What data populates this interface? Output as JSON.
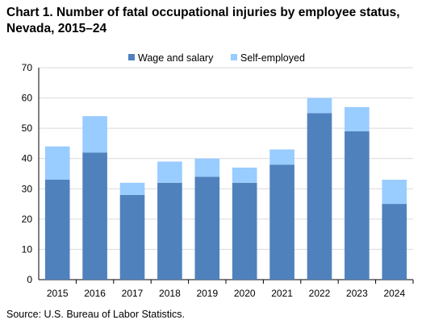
{
  "chart_data": {
    "type": "bar",
    "stacked": true,
    "title": "Chart 1. Number of fatal occupational injuries by employee status, Nevada, 2015–24",
    "xlabel": "",
    "ylabel": "",
    "categories": [
      "2015",
      "2016",
      "2017",
      "2018",
      "2019",
      "2020",
      "2021",
      "2022",
      "2023",
      "2024"
    ],
    "series": [
      {
        "name": "Wage and salary",
        "color": "#4f81bd",
        "values": [
          33,
          42,
          28,
          32,
          34,
          32,
          38,
          55,
          49,
          25
        ]
      },
      {
        "name": "Self-employed",
        "color": "#99ccff",
        "values": [
          11,
          12,
          4,
          7,
          6,
          5,
          5,
          5,
          8,
          8
        ]
      }
    ],
    "ylim": [
      0,
      70
    ],
    "yticks": [
      0,
      10,
      20,
      30,
      40,
      50,
      60,
      70
    ],
    "grid": true,
    "legend_position": "top-center"
  },
  "source": "Source:  U.S. Bureau  of Labor Statistics."
}
